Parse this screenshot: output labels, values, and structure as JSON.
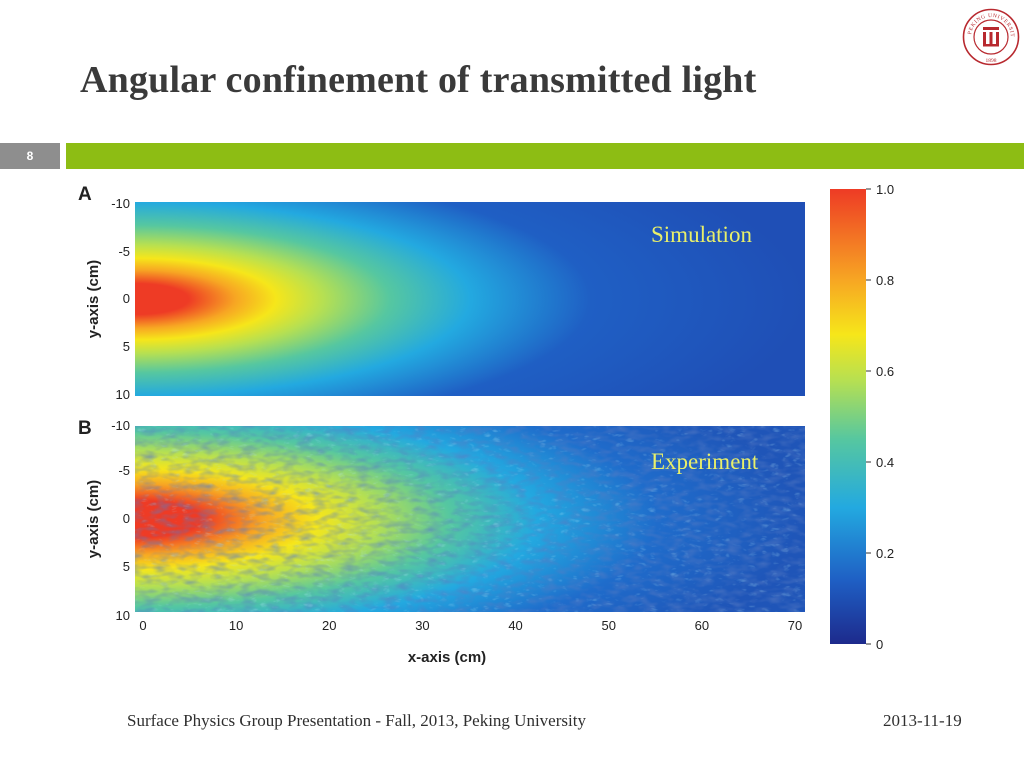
{
  "slide": {
    "title": "Angular confinement of transmitted light",
    "page_number": "8",
    "footer_left": "Surface Physics Group Presentation - Fall, 2013, Peking University",
    "footer_right": "2013-11-19",
    "logo": {
      "name": "peking-university-seal",
      "text": "PEKING UNIVERSITY",
      "year": "1898",
      "color": "#b8292f"
    },
    "colors": {
      "title": "#3a3a3a",
      "accent_green": "#8dbd14",
      "number_box": "#8e8e8e"
    }
  },
  "chart_data": {
    "type": "heatmap",
    "panels": [
      {
        "letter": "A",
        "label": "Simulation",
        "ylabel": "y-axis (cm)",
        "yticks": [
          "-10",
          "-5",
          "0",
          "5",
          "10"
        ]
      },
      {
        "letter": "B",
        "label": "Experiment",
        "ylabel": "y-axis (cm)",
        "yticks": [
          "-10",
          "-5",
          "0",
          "5",
          "10"
        ]
      }
    ],
    "xlabel": "x-axis (cm)",
    "xticks": [
      "0",
      "10",
      "20",
      "30",
      "40",
      "50",
      "60",
      "70"
    ],
    "xlim": [
      0,
      70
    ],
    "ylim": [
      -10,
      10
    ],
    "colorbar": {
      "ticks": [
        "1.0",
        "0.8",
        "0.6",
        "0.4",
        "0.2",
        "0"
      ],
      "range": [
        0,
        1
      ],
      "colormap": [
        "#1d2a8c",
        "#1f5fc4",
        "#23a9e0",
        "#56c7a0",
        "#b7e051",
        "#f6e61a",
        "#f7a623",
        "#ee3b25"
      ]
    }
  }
}
